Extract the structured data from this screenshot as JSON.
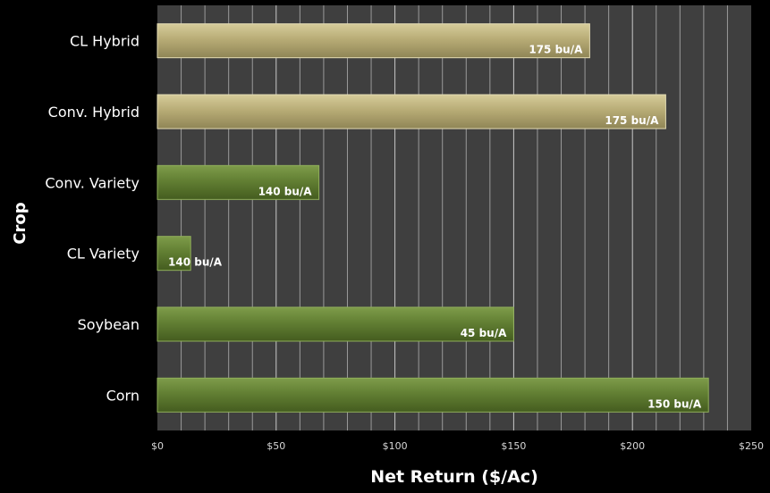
{
  "chart_data": {
    "type": "bar",
    "orientation": "horizontal",
    "xlabel": "Net Return ($/Ac)",
    "ylabel": "Crop",
    "xlim": [
      0,
      250
    ],
    "x_ticks": [
      "$0",
      "$50",
      "$100",
      "$150",
      "$200",
      "$250"
    ],
    "x_tick_values": [
      0,
      50,
      100,
      150,
      200,
      250
    ],
    "grid": true,
    "colors": {
      "tan_bar": "#b3a770",
      "green_bar": "#5f7c30",
      "plot_background": "#3f3f3f",
      "frame": "#000000"
    },
    "categories": [
      "CL Hybrid",
      "Conv. Hybrid",
      "Conv. Variety",
      "CL Variety",
      "Soybean",
      "Corn"
    ],
    "values": [
      182,
      214,
      68,
      14,
      150,
      232
    ],
    "data_labels": [
      "175 bu/A",
      "175 bu/A",
      "140 bu/A",
      "140 bu/A",
      "45 bu/A",
      "150 bu/A"
    ],
    "bar_colors": [
      "#b3a770",
      "#b3a770",
      "#5f7c30",
      "#5f7c30",
      "#5f7c30",
      "#5f7c30"
    ]
  }
}
